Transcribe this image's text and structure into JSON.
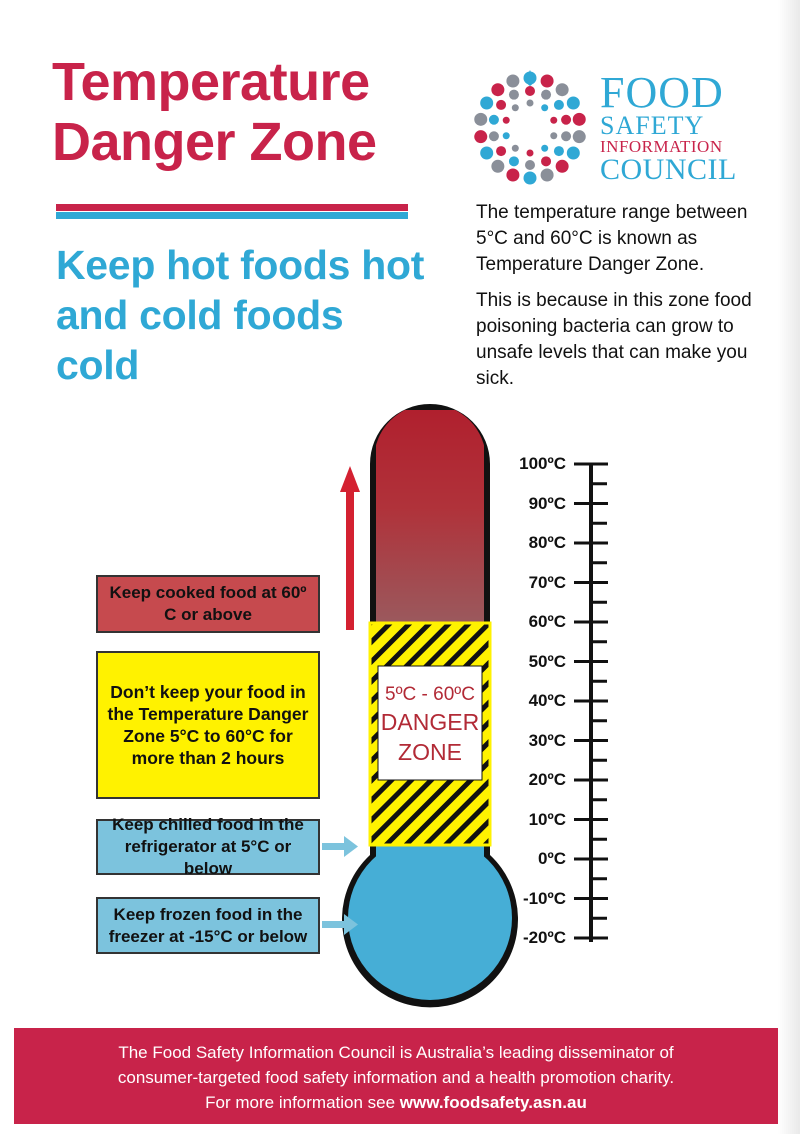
{
  "header": {
    "title_line1": "Temperature",
    "title_line2": "Danger Zone",
    "subtitle_line1": "Keep hot foods hot",
    "subtitle_line2": "and cold foods cold"
  },
  "logo": {
    "line1": "FOOD",
    "line2": "SAFETY",
    "line3": "INFORMATION",
    "line4": "COUNCIL"
  },
  "intro": {
    "paragraph1": "The temperature range between 5°C and 60°C is known as Temperature Danger Zone.",
    "paragraph2": "This is because in this zone food poisoning bacteria can grow to unsafe levels that can make you sick."
  },
  "boxes": {
    "hot": "Keep cooked food at 60º C or above",
    "danger": "Don’t keep your food in the Temperature Danger Zone 5°C to 60°C for more than 2 hours",
    "chilled": "Keep chilled food in the refrigerator at 5°C or below",
    "frozen": "Keep frozen food in the freezer at  -15°C or below"
  },
  "thermometer": {
    "zone_range": "5ºC - 60ºC",
    "zone_word1": "DANGER",
    "zone_word2": "ZONE",
    "danger_low": 5,
    "danger_high": 60
  },
  "scale": {
    "labels": [
      "100ºC",
      "90ºC",
      "80ºC",
      "70ºC",
      "60ºC",
      "50ºC",
      "40ºC",
      "30ºC",
      "20ºC",
      "10ºC",
      "0ºC",
      "-10ºC",
      "-20ºC"
    ],
    "values": [
      100,
      90,
      80,
      70,
      60,
      50,
      40,
      30,
      20,
      10,
      0,
      -10,
      -20
    ]
  },
  "footer": {
    "line1": "The Food Safety Information Council is Australia’s leading disseminator of",
    "line2": "consumer-targeted food safety information and a health promotion charity.",
    "line3_prefix": "For more information see ",
    "line3_link": "www.foodsafety.asn.au"
  },
  "colors": {
    "brand_red": "#c8234a",
    "brand_blue": "#2fa8d5",
    "hot": "#c64a4e",
    "danger": "#fff200",
    "cold": "#46aed6"
  },
  "icons": {
    "logo": "sunburst-dots-icon",
    "hot_arrow": "arrow-up-icon",
    "pointer": "arrow-right-icon"
  }
}
